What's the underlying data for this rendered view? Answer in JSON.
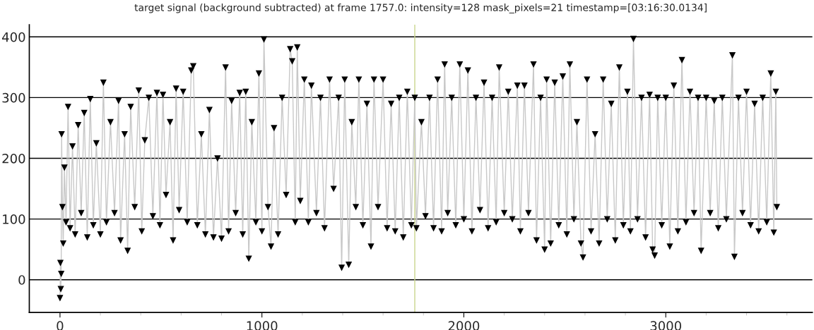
{
  "chart_data": {
    "type": "line",
    "title": "target signal (background subtracted) at frame 1757.0: intensity=128 mask_pixels=21 timestamp=[03:16:30.0134]",
    "series": [
      {
        "color": "#c8c8c8",
        "x": [
          0,
          2,
          4,
          6,
          8,
          12,
          16,
          22,
          30,
          40,
          50,
          62,
          75,
          90,
          105,
          120,
          135,
          150,
          165,
          180,
          200,
          215,
          230,
          250,
          270,
          290,
          300,
          320,
          335,
          350,
          370,
          390,
          405,
          420,
          440,
          460,
          480,
          495,
          510,
          525,
          545,
          560,
          575,
          590,
          610,
          630,
          650,
          660,
          680,
          700,
          720,
          740,
          760,
          780,
          800,
          820,
          835,
          850,
          870,
          890,
          905,
          920,
          935,
          950,
          970,
          985,
          1000,
          1010,
          1030,
          1045,
          1060,
          1080,
          1100,
          1120,
          1140,
          1150,
          1165,
          1175,
          1190,
          1210,
          1230,
          1245,
          1270,
          1290,
          1310,
          1335,
          1355,
          1380,
          1395,
          1410,
          1430,
          1445,
          1465,
          1480,
          1500,
          1520,
          1540,
          1555,
          1575,
          1600,
          1620,
          1640,
          1660,
          1680,
          1700,
          1720,
          1740,
          1757,
          1765,
          1790,
          1810,
          1830,
          1850,
          1870,
          1890,
          1905,
          1920,
          1940,
          1960,
          1980,
          2000,
          2020,
          2040,
          2060,
          2080,
          2100,
          2120,
          2140,
          2160,
          2175,
          2200,
          2220,
          2240,
          2265,
          2280,
          2300,
          2320,
          2345,
          2360,
          2380,
          2400,
          2410,
          2430,
          2450,
          2470,
          2490,
          2510,
          2525,
          2545,
          2560,
          2580,
          2590,
          2610,
          2630,
          2650,
          2670,
          2690,
          2710,
          2730,
          2750,
          2770,
          2790,
          2810,
          2825,
          2840,
          2860,
          2880,
          2900,
          2920,
          2935,
          2945,
          2960,
          2980,
          3000,
          3020,
          3040,
          3060,
          3080,
          3100,
          3120,
          3140,
          3160,
          3175,
          3200,
          3220,
          3240,
          3260,
          3280,
          3300,
          3330,
          3340,
          3360,
          3380,
          3400,
          3420,
          3440,
          3460,
          3480,
          3500,
          3520,
          3535,
          3545,
          3550
        ],
        "values": [
          -30,
          28,
          -15,
          10,
          240,
          120,
          60,
          185,
          95,
          285,
          85,
          220,
          75,
          255,
          110,
          275,
          70,
          298,
          90,
          225,
          75,
          325,
          95,
          260,
          110,
          295,
          65,
          240,
          48,
          285,
          120,
          312,
          80,
          230,
          300,
          105,
          308,
          90,
          305,
          140,
          260,
          65,
          315,
          115,
          310,
          95,
          345,
          352,
          90,
          240,
          75,
          280,
          70,
          200,
          68,
          350,
          80,
          295,
          110,
          308,
          75,
          310,
          35,
          260,
          95,
          340,
          80,
          396,
          120,
          55,
          250,
          75,
          300,
          140,
          380,
          360,
          95,
          383,
          130,
          330,
          95,
          320,
          110,
          300,
          85,
          330,
          150,
          300,
          20,
          330,
          25,
          260,
          120,
          330,
          90,
          290,
          55,
          330,
          120,
          330,
          85,
          290,
          80,
          300,
          70,
          310,
          90,
          300,
          85,
          260,
          105,
          300,
          85,
          330,
          80,
          355,
          110,
          300,
          90,
          355,
          100,
          345,
          80,
          300,
          115,
          325,
          85,
          300,
          95,
          350,
          110,
          310,
          100,
          320,
          80,
          320,
          110,
          355,
          65,
          300,
          50,
          330,
          60,
          325,
          90,
          335,
          75,
          355,
          100,
          260,
          60,
          37,
          330,
          80,
          240,
          60,
          330,
          100,
          290,
          65,
          350,
          90,
          310,
          80,
          397,
          100,
          300,
          70,
          305,
          50,
          40,
          300,
          90,
          300,
          55,
          320,
          80,
          362,
          95,
          310,
          110,
          300,
          48,
          300,
          110,
          295,
          85,
          300,
          100,
          370,
          38,
          300,
          110,
          310,
          90,
          290,
          80,
          300,
          95,
          340,
          78,
          310,
          120
        ]
      }
    ],
    "marker": "triangle",
    "xlim": [
      -152,
      3726
    ],
    "ylim": [
      -54,
      420
    ],
    "xticks": [
      0,
      {
        "value": 200,
        "label": null
      },
      {
        "value": 400,
        "label": null
      },
      {
        "value": 600,
        "label": null
      },
      {
        "value": 800,
        "label": null
      },
      1000,
      {
        "value": 1200,
        "label": null
      },
      {
        "value": 1400,
        "label": null
      },
      {
        "value": 1600,
        "label": null
      },
      {
        "value": 1800,
        "label": null
      },
      2000,
      {
        "value": 2200,
        "label": null
      },
      {
        "value": 2400,
        "label": null
      },
      {
        "value": 2600,
        "label": null
      },
      {
        "value": 2800,
        "label": null
      },
      3000,
      {
        "value": 3200,
        "label": null
      },
      {
        "value": 3400,
        "label": null
      },
      {
        "value": 3600,
        "label": null
      }
    ],
    "yticks": [
      0,
      100,
      200,
      300,
      400
    ],
    "grid": "y",
    "ref_lines": [
      {
        "axis": "x",
        "value": 1757,
        "color": "#c9d58c"
      }
    ]
  }
}
